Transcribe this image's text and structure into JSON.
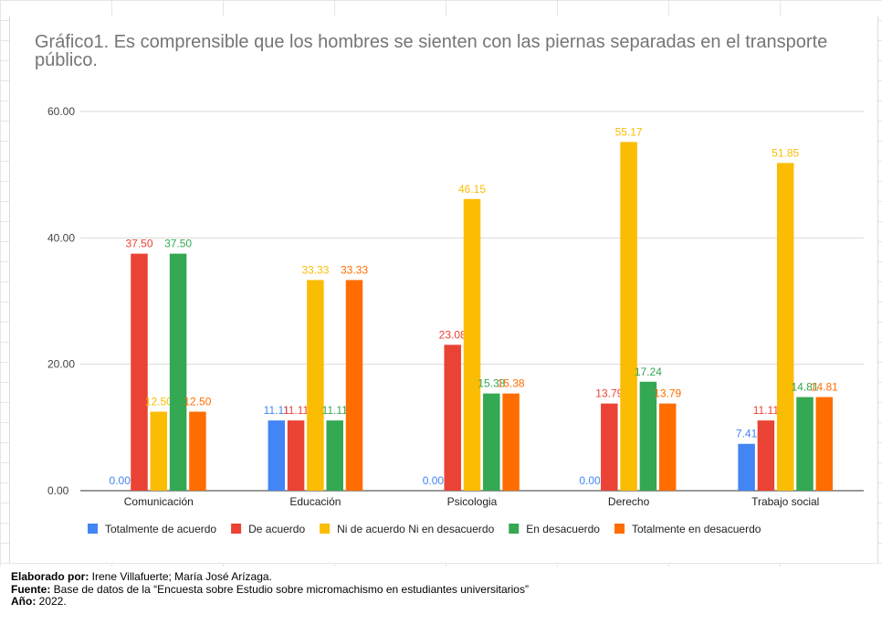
{
  "chart_data": {
    "type": "bar",
    "title": "Gráfico1. Es comprensible que los hombres se sienten con las piernas separadas en el transporte público.",
    "categories": [
      "Comunicación",
      "Educación",
      "Psicologia",
      "Derecho",
      "Trabajo social"
    ],
    "series": [
      {
        "name": "Totalmente de acuerdo",
        "color": "#4285f4",
        "values": [
          0.0,
          11.11,
          0.0,
          0.0,
          7.41
        ],
        "labels": [
          "0.00",
          "11.11",
          "0.00",
          "0.00",
          "7.41"
        ]
      },
      {
        "name": "De acuerdo",
        "color": "#ea4335",
        "values": [
          37.5,
          11.11,
          23.08,
          13.79,
          11.11
        ],
        "labels": [
          "37.50",
          "11.11",
          "23.08",
          "13.79",
          "11.11"
        ]
      },
      {
        "name": "Ni de acuerdo Ni en desacuerdo",
        "color": "#fbbc04",
        "values": [
          12.5,
          33.33,
          46.15,
          55.17,
          51.85
        ],
        "labels": [
          "12.50",
          "33.33",
          "46.15",
          "55.17",
          "51.85"
        ]
      },
      {
        "name": "En desacuerdo",
        "color": "#34a853",
        "values": [
          37.5,
          11.11,
          15.38,
          17.24,
          14.81
        ],
        "labels": [
          "37.50",
          "11.11",
          "15.38",
          "17.24",
          "14.81"
        ]
      },
      {
        "name": "Totalmente en desacuerdo",
        "color": "#ff6d01",
        "values": [
          12.5,
          33.33,
          15.38,
          13.79,
          14.81
        ],
        "labels": [
          "12.50",
          "33.33",
          "15.38",
          "13.79",
          "14.81"
        ]
      }
    ],
    "yticks": [
      "0.00",
      "20.00",
      "40.00",
      "60.00"
    ],
    "ytick_values": [
      0,
      20,
      40,
      60
    ],
    "ylim": [
      0,
      60
    ],
    "grid": true,
    "legend_position": "bottom"
  },
  "source": {
    "elaborado_label": "Elaborado por:",
    "elaborado_value": " Irene Villafuerte; María José Arízaga.",
    "fuente_label": "Fuente:",
    "fuente_value": " Base de datos de la “Encuesta sobre Estudio sobre micromachismo en estudiantes universitarios”",
    "anio_label": "Año:",
    "anio_value": " 2022."
  }
}
